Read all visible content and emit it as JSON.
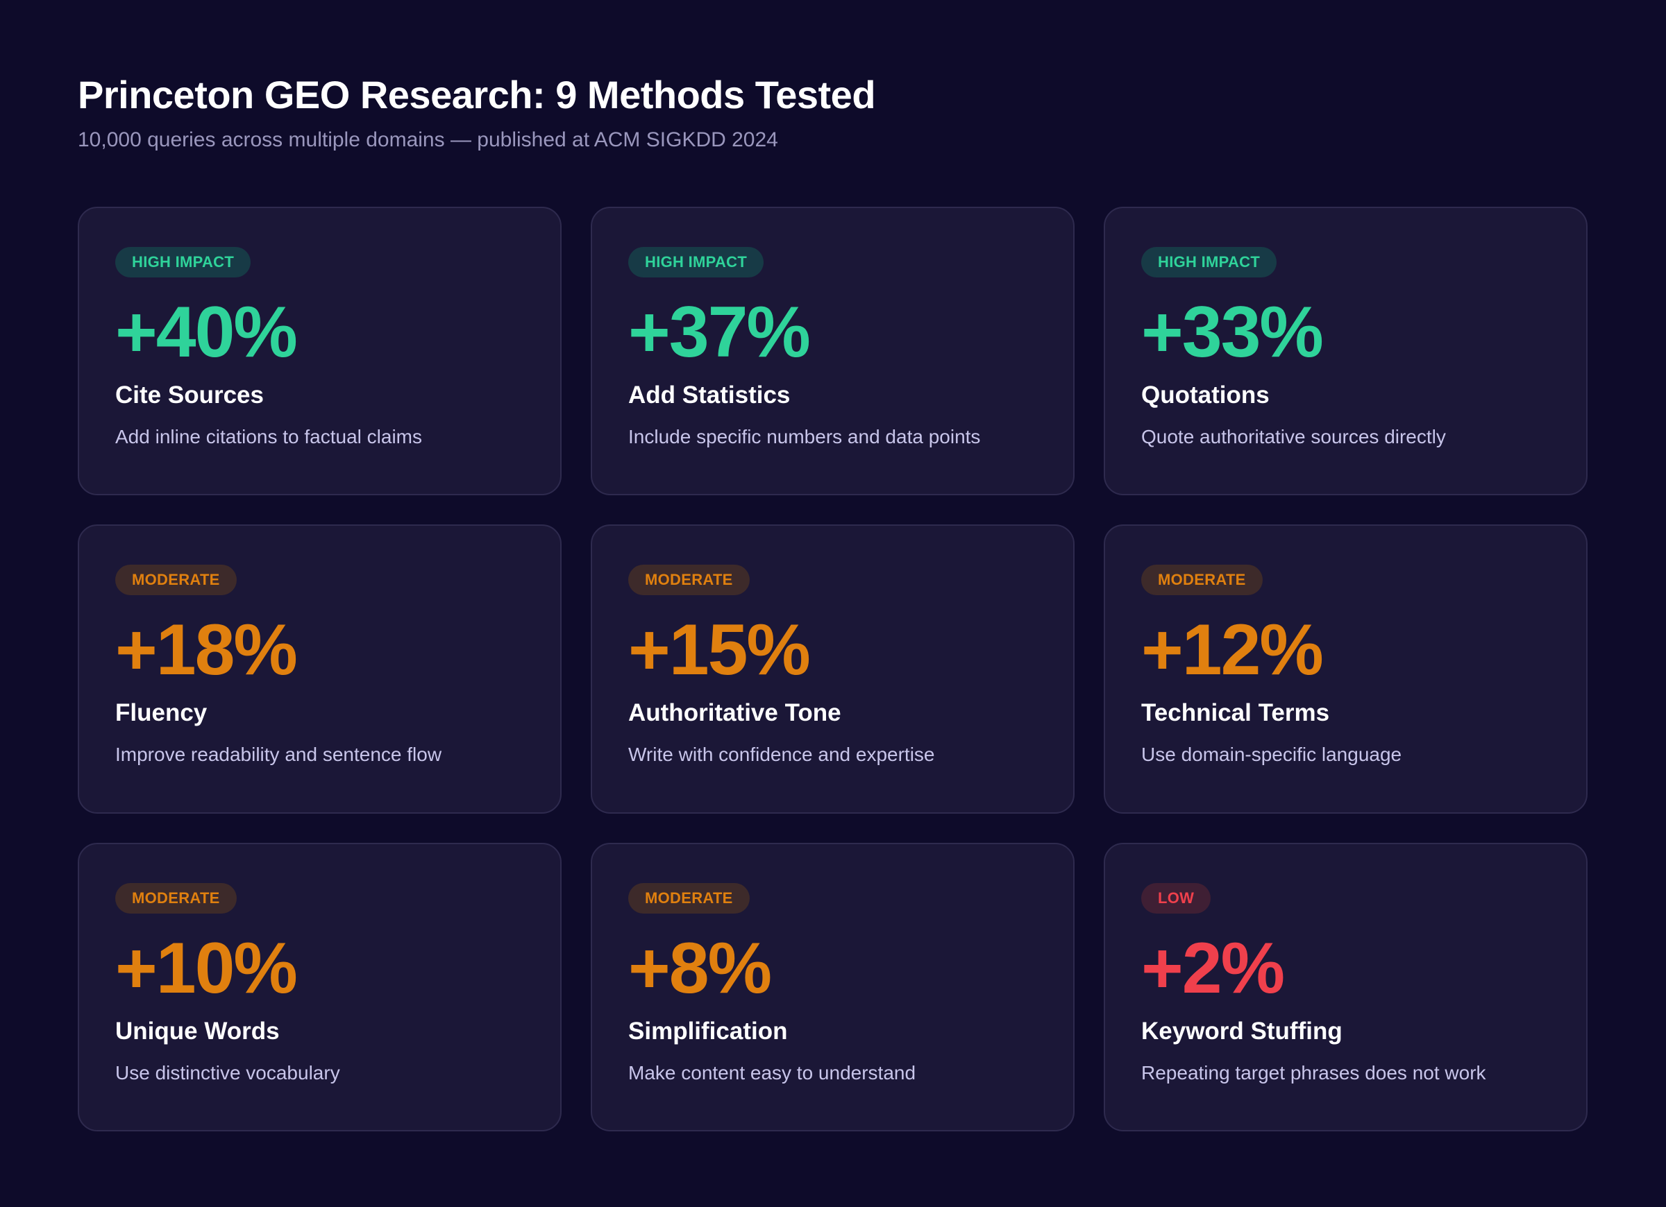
{
  "header": {
    "title": "Princeton GEO Research: 9 Methods Tested",
    "subtitle": "10,000 queries across multiple domains — published at ACM SIGKDD 2024"
  },
  "colors": {
    "background": "#0e0b2a",
    "card": "#1b1737",
    "high": "#2fd39a",
    "moderate": "#e0800f",
    "low": "#f0404c"
  },
  "cards": [
    {
      "tier": "high",
      "badge": "HIGH IMPACT",
      "value": "+40%",
      "method": "Cite Sources",
      "description": "Add inline citations to factual claims"
    },
    {
      "tier": "high",
      "badge": "HIGH IMPACT",
      "value": "+37%",
      "method": "Add Statistics",
      "description": "Include specific numbers and data points"
    },
    {
      "tier": "high",
      "badge": "HIGH IMPACT",
      "value": "+33%",
      "method": "Quotations",
      "description": "Quote authoritative sources directly"
    },
    {
      "tier": "moderate",
      "badge": "MODERATE",
      "value": "+18%",
      "method": "Fluency",
      "description": "Improve readability and sentence flow"
    },
    {
      "tier": "moderate",
      "badge": "MODERATE",
      "value": "+15%",
      "method": "Authoritative Tone",
      "description": "Write with confidence and expertise"
    },
    {
      "tier": "moderate",
      "badge": "MODERATE",
      "value": "+12%",
      "method": "Technical Terms",
      "description": "Use domain-specific language"
    },
    {
      "tier": "moderate",
      "badge": "MODERATE",
      "value": "+10%",
      "method": "Unique Words",
      "description": "Use distinctive vocabulary"
    },
    {
      "tier": "moderate",
      "badge": "MODERATE",
      "value": "+8%",
      "method": "Simplification",
      "description": "Make content easy to understand"
    },
    {
      "tier": "low",
      "badge": "LOW",
      "value": "+2%",
      "method": "Keyword Stuffing",
      "description": "Repeating target phrases does not work"
    }
  ]
}
